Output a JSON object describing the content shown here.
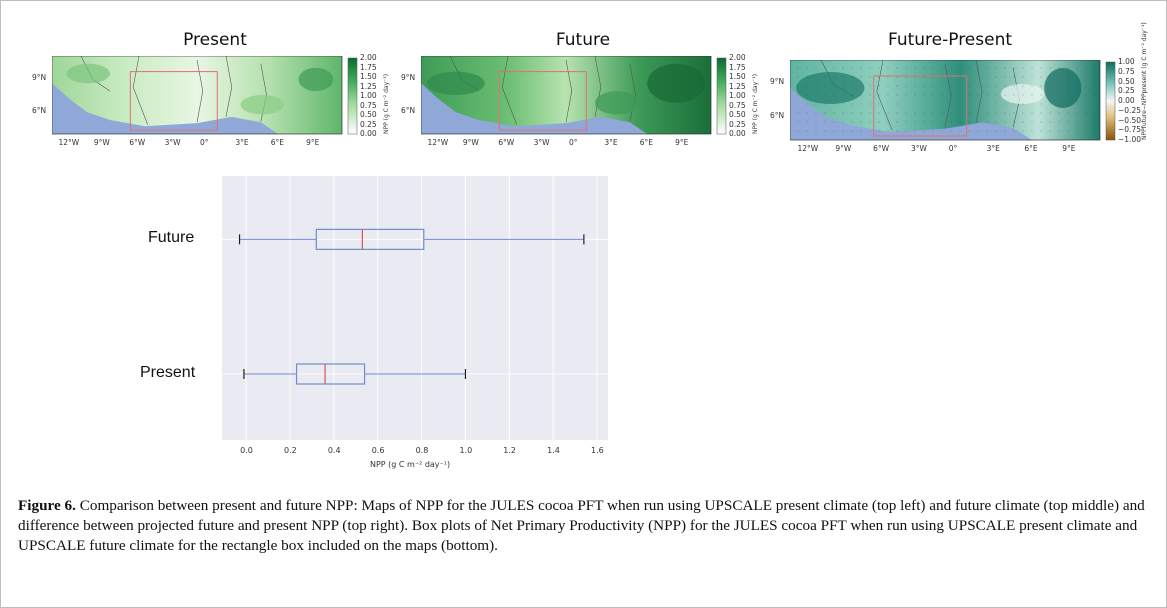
{
  "figure": {
    "panels": [
      {
        "title": "Present",
        "colorbar_ticks": [
          "2.00",
          "1.75",
          "1.50",
          "1.25",
          "1.00",
          "0.75",
          "0.50",
          "0.25",
          "0.00"
        ],
        "colorbar_label": "NPP (g C m⁻² day⁻¹)"
      },
      {
        "title": "Future",
        "colorbar_ticks": [
          "2.00",
          "1.75",
          "1.50",
          "1.25",
          "1.00",
          "0.75",
          "0.50",
          "0.25",
          "0.00"
        ],
        "colorbar_label": "NPP (g C m⁻² day⁻¹)"
      },
      {
        "title": "Future-Present",
        "colorbar_ticks": [
          "1.00",
          "0.75",
          "0.50",
          "0.25",
          "0.00",
          "−0.25",
          "−0.50",
          "−0.75",
          "−1.00"
        ],
        "colorbar_label": "NPPfuture−NPPpresent (g C m⁻² day⁻¹)"
      }
    ],
    "lon_ticks": [
      "12°W",
      "9°W",
      "6°W",
      "3°W",
      "0°",
      "3°E",
      "6°E",
      "9°E"
    ],
    "lat_ticks": [
      "9°N",
      "6°N"
    ],
    "colors": {
      "green_dark": "#0b6b2e",
      "green_light": "#eef8ea",
      "teal_dark": "#0f6b5e",
      "brown": "#8c510a",
      "ocean": "#8fa8d8",
      "rect": "#e07070"
    },
    "caption": {
      "label": "Figure 6.",
      "text": " Comparison between present and future NPP: Maps of NPP for the JULES cocoa PFT when run using UPSCALE present climate (top left) and future climate (top middle) and difference between projected future and present NPP (top right). Box plots of Net Primary Productivity (NPP) for the JULES cocoa PFT when run using UPSCALE present climate and UPSCALE future climate for the rectangle box included on the maps (bottom)."
    }
  },
  "chart_data": {
    "type": "boxplot",
    "orientation": "horizontal",
    "categories": [
      "Future",
      "Present"
    ],
    "boxes": [
      {
        "category": "Future",
        "min": -0.03,
        "q1": 0.32,
        "median": 0.53,
        "q3": 0.81,
        "max": 1.54
      },
      {
        "category": "Present",
        "min": -0.01,
        "q1": 0.23,
        "median": 0.36,
        "q3": 0.54,
        "max": 1.0
      }
    ],
    "xlabel": "NPP (g C m⁻² day⁻¹)",
    "xticks": [
      0.0,
      0.2,
      0.4,
      0.6,
      0.8,
      1.0,
      1.2,
      1.4,
      1.6
    ],
    "xtick_labels": [
      "0.0",
      "0.2",
      "0.4",
      "0.6",
      "0.8",
      "1.0",
      "1.2",
      "1.4",
      "1.6"
    ],
    "xlim": [
      -0.11,
      1.65
    ],
    "grid": true,
    "colors": {
      "box": "#6f8fc7",
      "median": "#d9534f",
      "background": "#eaeaf2"
    }
  }
}
